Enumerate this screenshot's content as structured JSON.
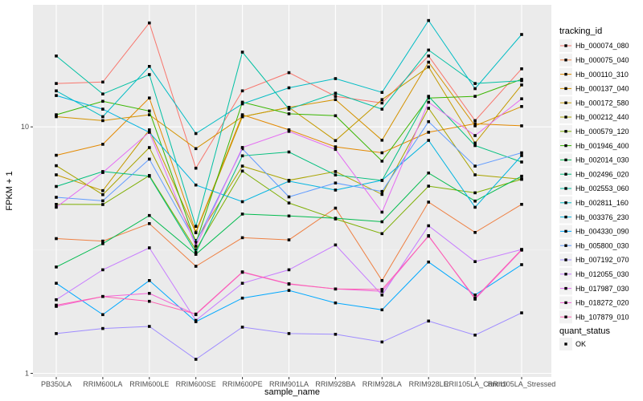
{
  "chart_data": {
    "type": "line",
    "title": "",
    "xlabel": "sample_name",
    "ylabel": "FPKM + 1",
    "y_scale": "log10",
    "ylim": [
      1,
      30
    ],
    "y_ticks": [
      {
        "value": 1,
        "label": "1"
      },
      {
        "value": 10,
        "label": "10"
      }
    ],
    "categories": [
      "PB350LA",
      "RRIM600LA",
      "RRIM600LE",
      "RRIM600SE",
      "RRIM600PE",
      "RRIM901LA",
      "RRIM928BA",
      "RRIM928LA",
      "RRIM928LE",
      "RRII105LA_Control",
      "RRII105LA_Stressed"
    ],
    "grid": true,
    "legend_position": "right",
    "legend_title": "tracking_id",
    "shape_legend": {
      "title": "quant_status",
      "items": [
        "OK"
      ]
    },
    "series": [
      {
        "name": "Hb_000074_080",
        "color": "#F8766D",
        "values": [
          15.0,
          15.2,
          26.4,
          6.8,
          14.0,
          16.6,
          13.3,
          12.5,
          19.4,
          10.6,
          17.2
        ]
      },
      {
        "name": "Hb_000075_040",
        "color": "#EE8043",
        "values": [
          3.52,
          3.44,
          4.05,
          2.72,
          3.55,
          3.48,
          4.68,
          2.38,
          4.95,
          3.73,
          4.85
        ]
      },
      {
        "name": "Hb_000110_310",
        "color": "#E38900",
        "values": [
          7.67,
          8.5,
          13.1,
          3.75,
          11.2,
          9.73,
          8.3,
          7.85,
          9.51,
          10.3,
          10.1
        ]
      },
      {
        "name": "Hb_000137_040",
        "color": "#D49200",
        "values": [
          11.0,
          10.6,
          11.2,
          8.16,
          11.0,
          12.0,
          12.9,
          8.83,
          18.3,
          10.1,
          12.1
        ]
      },
      {
        "name": "Hb_000172_580",
        "color": "#C49A00",
        "values": [
          6.39,
          5.51,
          9.73,
          3.72,
          11.0,
          12.0,
          8.8,
          12.9,
          17.5,
          8.6,
          14.8
        ]
      },
      {
        "name": "Hb_000212_440",
        "color": "#A9A400",
        "values": [
          6.96,
          5.31,
          8.24,
          3.46,
          6.93,
          6.07,
          6.59,
          5.32,
          11.9,
          6.39,
          6.13
        ]
      },
      {
        "name": "Hb_000579_120",
        "color": "#7DAE00",
        "values": [
          4.85,
          4.84,
          6.35,
          3.17,
          6.62,
          4.91,
          4.23,
          3.69,
          5.75,
          5.4,
          6.13
        ]
      },
      {
        "name": "Hb_001946_400",
        "color": "#39B600",
        "values": [
          11.2,
          12.7,
          11.6,
          3.38,
          12.6,
          11.3,
          11.1,
          7.26,
          13.1,
          13.3,
          15.6
        ]
      },
      {
        "name": "Hb_002014_030",
        "color": "#00BB4E",
        "values": [
          2.7,
          3.36,
          4.37,
          3.04,
          4.43,
          4.35,
          4.26,
          4.12,
          6.5,
          5.0,
          6.31
        ]
      },
      {
        "name": "Hb_002496_020",
        "color": "#00BF7D",
        "values": [
          5.73,
          6.59,
          6.31,
          3.09,
          7.63,
          7.91,
          6.38,
          6.06,
          13.3,
          8.4,
          7.2
        ]
      },
      {
        "name": "Hb_002553_060",
        "color": "#00C0A3",
        "values": [
          19.4,
          13.6,
          16.3,
          3.95,
          20.1,
          11.8,
          13.7,
          11.8,
          20.5,
          15.0,
          15.4
        ]
      },
      {
        "name": "Hb_002811_160",
        "color": "#00BCC4",
        "values": [
          14.0,
          11.0,
          17.6,
          9.4,
          12.4,
          14.4,
          15.7,
          13.8,
          27.0,
          14.3,
          23.7
        ]
      },
      {
        "name": "Hb_003376_230",
        "color": "#00B4E0",
        "values": [
          13.4,
          11.8,
          9.5,
          5.81,
          4.97,
          6.02,
          5.54,
          6.07,
          8.82,
          4.72,
          7.65
        ]
      },
      {
        "name": "Hb_004330_090",
        "color": "#00A8FF",
        "values": [
          2.32,
          1.73,
          2.38,
          1.62,
          2.02,
          2.17,
          1.93,
          1.81,
          2.83,
          2.08,
          2.76
        ]
      },
      {
        "name": "Hb_005800_030",
        "color": "#619CFF",
        "values": [
          5.18,
          5.01,
          7.4,
          3.4,
          8.15,
          5.2,
          5.92,
          5.47,
          10.5,
          6.93,
          7.85
        ]
      },
      {
        "name": "Hb_007192_070",
        "color": "#9F8CFF",
        "values": [
          1.45,
          1.52,
          1.55,
          1.14,
          1.54,
          1.45,
          1.44,
          1.34,
          1.63,
          1.43,
          1.76
        ]
      },
      {
        "name": "Hb_012055_030",
        "color": "#C77CFF",
        "values": [
          1.99,
          2.63,
          3.23,
          1.64,
          2.32,
          2.63,
          3.32,
          2.08,
          3.97,
          2.84,
          3.18
        ]
      },
      {
        "name": "Hb_017987_030",
        "color": "#E56BF3",
        "values": [
          4.72,
          6.53,
          9.52,
          3.28,
          8.25,
          9.59,
          8.1,
          4.51,
          12.6,
          9.22,
          13.0
        ]
      },
      {
        "name": "Hb_018272_020",
        "color": "#F464D7",
        "values": [
          1.87,
          2.05,
          2.11,
          1.73,
          2.57,
          2.3,
          2.2,
          2.15,
          3.62,
          2.0,
          3.16
        ]
      },
      {
        "name": "Hb_107879_010",
        "color": "#FD61B1",
        "values": [
          1.89,
          2.05,
          1.96,
          1.74,
          2.58,
          2.31,
          2.2,
          2.19,
          3.6,
          2.02,
          3.18
        ]
      }
    ]
  }
}
